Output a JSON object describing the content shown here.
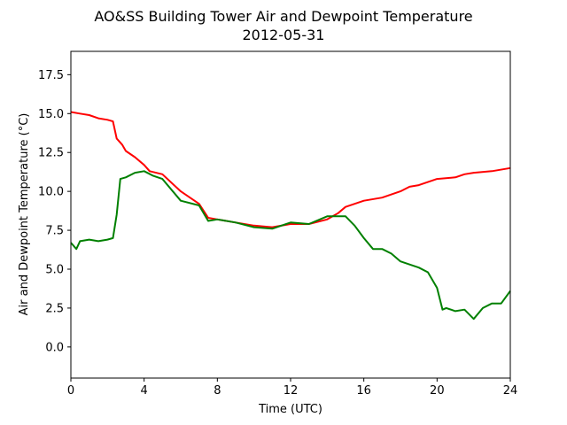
{
  "chart_data": {
    "type": "line",
    "title": "AO&SS Building Tower Air and Dewpoint Temperature",
    "subtitle": "2012-05-31",
    "xlabel": "Time (UTC)",
    "ylabel": "Air and Dewpoint Temperature (°C)",
    "xlim": [
      0,
      24
    ],
    "ylim": [
      -2,
      19
    ],
    "xticks": [
      0,
      4,
      8,
      12,
      16,
      20,
      24
    ],
    "xtick_labels": [
      "0",
      "4",
      "8",
      "12",
      "16",
      "20",
      "24"
    ],
    "yticks": [
      0,
      2.5,
      5,
      7.5,
      10,
      12.5,
      15,
      17.5
    ],
    "ytick_labels": [
      "0.0",
      "2.5",
      "5.0",
      "7.5",
      "10.0",
      "12.5",
      "15.0",
      "17.5"
    ],
    "grid": false,
    "series": [
      {
        "color": "#ff0000",
        "x": [
          0,
          0.5,
          1,
          1.5,
          2,
          2.3,
          2.5,
          2.8,
          3,
          3.5,
          4,
          4.3,
          5,
          6,
          7,
          7.5,
          8,
          9,
          10,
          11,
          12,
          13,
          14,
          14.6,
          15,
          16,
          17,
          18,
          18.5,
          19,
          20,
          21,
          21.5,
          22,
          23,
          24
        ],
        "y": [
          15.1,
          15.0,
          14.9,
          14.7,
          14.6,
          14.5,
          13.4,
          13.0,
          12.6,
          12.2,
          11.7,
          11.3,
          11.1,
          10.0,
          9.2,
          8.3,
          8.2,
          8.0,
          7.8,
          7.7,
          7.9,
          7.9,
          8.2,
          8.6,
          9.0,
          9.4,
          9.6,
          10.0,
          10.3,
          10.4,
          10.8,
          10.9,
          11.1,
          11.2,
          11.3,
          11.5
        ]
      },
      {
        "color": "#008000",
        "x": [
          0,
          0.3,
          0.5,
          1,
          1.5,
          2,
          2.3,
          2.5,
          2.7,
          3,
          3.5,
          4,
          4.5,
          5,
          6,
          7,
          7.5,
          8,
          9,
          10,
          11,
          12,
          13,
          14,
          15,
          15.5,
          16,
          16.5,
          17,
          17.5,
          18,
          18.5,
          19,
          19.5,
          20,
          20.3,
          20.5,
          21,
          21.5,
          22,
          22.5,
          23,
          23.5,
          24
        ],
        "y": [
          6.7,
          6.3,
          6.8,
          6.9,
          6.8,
          6.9,
          7.0,
          8.5,
          10.8,
          10.9,
          11.2,
          11.3,
          11.0,
          10.8,
          9.4,
          9.1,
          8.1,
          8.2,
          8.0,
          7.7,
          7.6,
          8.0,
          7.9,
          8.4,
          8.4,
          7.8,
          7.0,
          6.3,
          6.3,
          6.0,
          5.5,
          5.3,
          5.1,
          4.8,
          3.8,
          2.4,
          2.5,
          2.3,
          2.4,
          1.8,
          2.5,
          2.8,
          2.8,
          3.6
        ]
      }
    ]
  }
}
